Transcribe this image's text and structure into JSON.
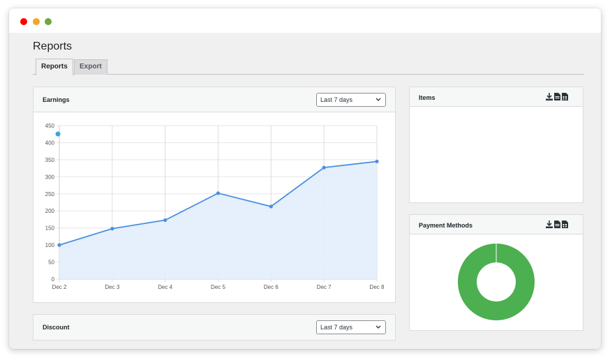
{
  "page": {
    "title": "Reports"
  },
  "tabs": [
    {
      "label": "Reports"
    },
    {
      "label": "Export"
    }
  ],
  "earnings": {
    "title": "Earnings",
    "range_select": "Last 7 days"
  },
  "items": {
    "title": "Items"
  },
  "payment_methods": {
    "title": "Payment Methods"
  },
  "discount": {
    "title": "Discount",
    "range_select": "Last 7 days"
  },
  "colors": {
    "line": "#4a90e2",
    "fill": "#e2eefc",
    "donut": "#4caf50",
    "close": "#fe0000",
    "minimize": "#f5a623",
    "maximize": "#6ca743"
  },
  "chart_data": [
    {
      "type": "area",
      "x": [
        "Dec 2",
        "Dec 3",
        "Dec 4",
        "Dec 5",
        "Dec 6",
        "Dec 7",
        "Dec 8"
      ],
      "values": [
        100,
        148,
        173,
        252,
        213,
        327,
        345
      ],
      "ylim": [
        0,
        450
      ],
      "yticks": [
        0,
        50,
        100,
        150,
        200,
        250,
        300,
        350,
        400,
        450
      ],
      "grid": true,
      "title": ""
    },
    {
      "type": "pie",
      "categories": [
        ""
      ],
      "values": [
        100
      ],
      "title": ""
    }
  ]
}
